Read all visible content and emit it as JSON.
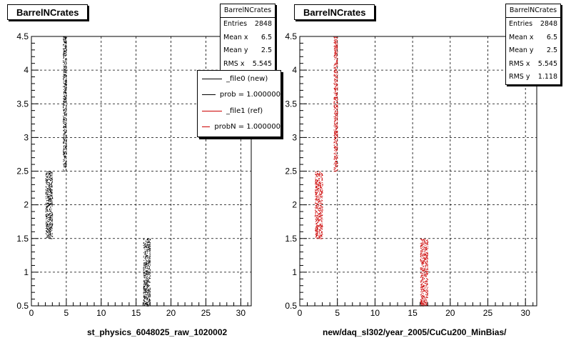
{
  "panels": [
    {
      "title": "BarrelNCrates",
      "xlabel": "st_physics_6048025_raw_1020002",
      "stats": {
        "header": "BarrelNCrates",
        "rows": [
          {
            "label": "Entries",
            "value": "2848"
          },
          {
            "label": "Mean x",
            "value": "6.5"
          },
          {
            "label": "Mean y",
            "value": "2.5"
          },
          {
            "label": "RMS x",
            "value": "5.545"
          }
        ]
      },
      "legend": [
        {
          "text": "_file0 (new)",
          "color": "#000000"
        },
        {
          "text": "prob = 1.000000",
          "color": "#000000"
        },
        {
          "text": "_file1 (ref)",
          "color": "#cc0000"
        },
        {
          "text": "probN = 1.000000",
          "color": "#cc0000"
        }
      ]
    },
    {
      "title": "BarrelNCrates",
      "xlabel": "new/daq_sl302/year_2005/CuCu200_MinBias/",
      "stats": {
        "header": "BarrelNCrates",
        "rows": [
          {
            "label": "Entries",
            "value": "2848"
          },
          {
            "label": "Mean x",
            "value": "6.5"
          },
          {
            "label": "Mean y",
            "value": "2.5"
          },
          {
            "label": "RMS x",
            "value": "5.545"
          },
          {
            "label": "RMS y",
            "value": "1.118"
          }
        ]
      }
    }
  ],
  "chart_data": [
    {
      "type": "scatter",
      "title": "BarrelNCrates",
      "xlabel": "st_physics_6048025_raw_1020002",
      "ylabel": "",
      "xlim": [
        0,
        31.5
      ],
      "ylim": [
        0.5,
        4.5
      ],
      "xticks": [
        0,
        5,
        10,
        15,
        20,
        25,
        30
      ],
      "yticks": [
        0.5,
        1,
        1.5,
        2,
        2.5,
        3,
        3.5,
        4,
        4.5
      ],
      "grid": true,
      "color": "#000000",
      "clusters": [
        {
          "x": [
            2,
            3
          ],
          "y": [
            1.5,
            2.5
          ]
        },
        {
          "x": [
            4.5,
            5
          ],
          "y": [
            2.5,
            4.5
          ]
        },
        {
          "x": [
            16,
            17
          ],
          "y": [
            0.5,
            1.5
          ]
        }
      ]
    },
    {
      "type": "scatter",
      "title": "BarrelNCrates",
      "xlabel": "new/daq_sl302/year_2005/CuCu200_MinBias/",
      "ylabel": "",
      "xlim": [
        0,
        31.5
      ],
      "ylim": [
        0.5,
        4.5
      ],
      "xticks": [
        0,
        5,
        10,
        15,
        20,
        25,
        30
      ],
      "yticks": [
        0.5,
        1,
        1.5,
        2,
        2.5,
        3,
        3.5,
        4,
        4.5
      ],
      "grid": true,
      "color": "#cc0000",
      "clusters": [
        {
          "x": [
            2,
            3
          ],
          "y": [
            1.5,
            2.5
          ]
        },
        {
          "x": [
            4.5,
            5
          ],
          "y": [
            2.5,
            4.5
          ]
        },
        {
          "x": [
            16,
            17
          ],
          "y": [
            0.5,
            1.5
          ]
        }
      ]
    }
  ]
}
